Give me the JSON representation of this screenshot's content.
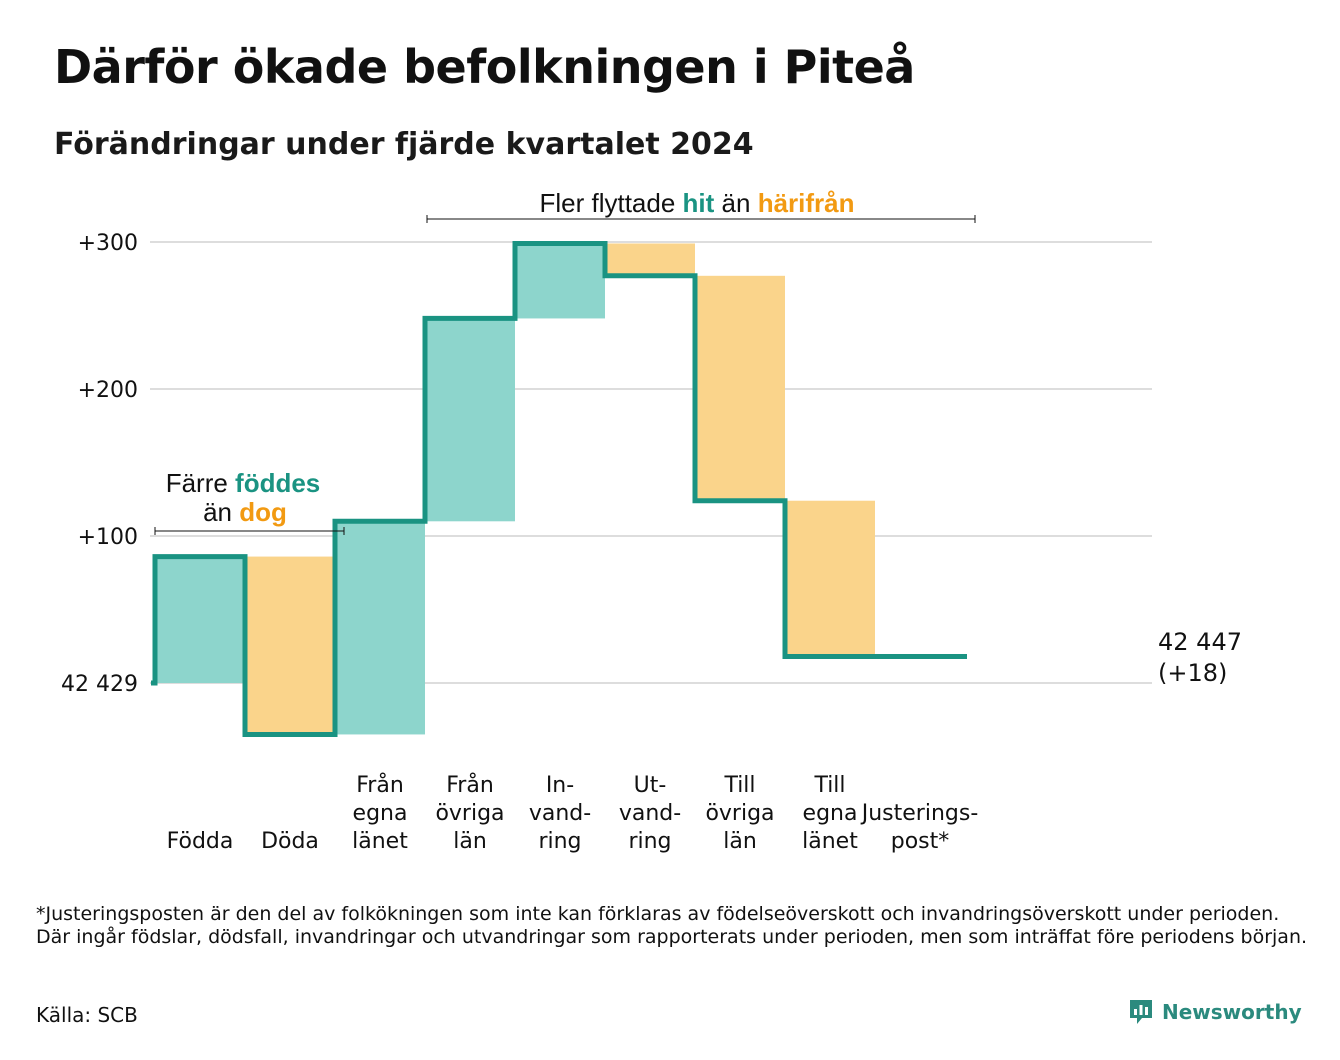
{
  "header": {
    "title": "Därför ökade befolkningen i Piteå",
    "subtitle": "Förändringar under fjärde kvartalet 2024"
  },
  "chart_data": {
    "type": "waterfall",
    "title": "Därför ökade befolkningen i Piteå",
    "subtitle": "Förändringar under fjärde kvartalet 2024",
    "base_population": 42429,
    "base_label": "42 429",
    "ylim": [
      -35,
      300
    ],
    "y_ticks": [
      {
        "value": 0,
        "label": "42 429"
      },
      {
        "value": 100,
        "label": "+100"
      },
      {
        "value": 200,
        "label": "+200"
      },
      {
        "value": 300,
        "label": "+300"
      }
    ],
    "grid": true,
    "steps": [
      {
        "lines": [
          "Födda"
        ],
        "change": 86,
        "direction": "in"
      },
      {
        "lines": [
          "Döda"
        ],
        "change": -121,
        "direction": "out"
      },
      {
        "lines": [
          "Från",
          "egna",
          "länet"
        ],
        "change": 145,
        "direction": "in"
      },
      {
        "lines": [
          "Från",
          "övriga",
          "län"
        ],
        "change": 138,
        "direction": "in"
      },
      {
        "lines": [
          "In-",
          "vand-",
          "ring"
        ],
        "change": 51,
        "direction": "in"
      },
      {
        "lines": [
          "Ut-",
          "vand-",
          "ring"
        ],
        "change": -22,
        "direction": "out"
      },
      {
        "lines": [
          "Till",
          "övriga",
          "län"
        ],
        "change": -153,
        "direction": "out"
      },
      {
        "lines": [
          "Till",
          "egna",
          "länet"
        ],
        "change": -106,
        "direction": "out"
      },
      {
        "lines": [
          "Justerings-",
          "post*"
        ],
        "change": 0,
        "direction": "adjustment"
      }
    ],
    "final": {
      "value": 18,
      "label_line1": "42 447",
      "label_line2": "(+18)"
    },
    "annotations": {
      "births": {
        "parts": [
          "Färre ",
          "föddes",
          "än ",
          "dog"
        ]
      },
      "migration": {
        "parts": [
          "Fler flyttade ",
          "hit",
          " än ",
          "härifrån"
        ]
      }
    },
    "colors": {
      "in": "#8dd5cc",
      "out": "#fad48b",
      "line": "#1a9382",
      "in_text": "#1a9382",
      "out_text": "#f29a12",
      "grid": "#dddddd"
    }
  },
  "footnote": "*Justeringsposten är den del av folkökningen som inte kan förklaras av födelseöverskott och invandringsöverskott under perioden. Där ingår födslar, dödsfall, invandringar och utvandringar som rapporterats under perioden, men som inträffat före periodens början.",
  "source": "Källa: SCB",
  "brand": {
    "name": "Newsworthy",
    "icon": "newsworthy-logo-icon"
  }
}
